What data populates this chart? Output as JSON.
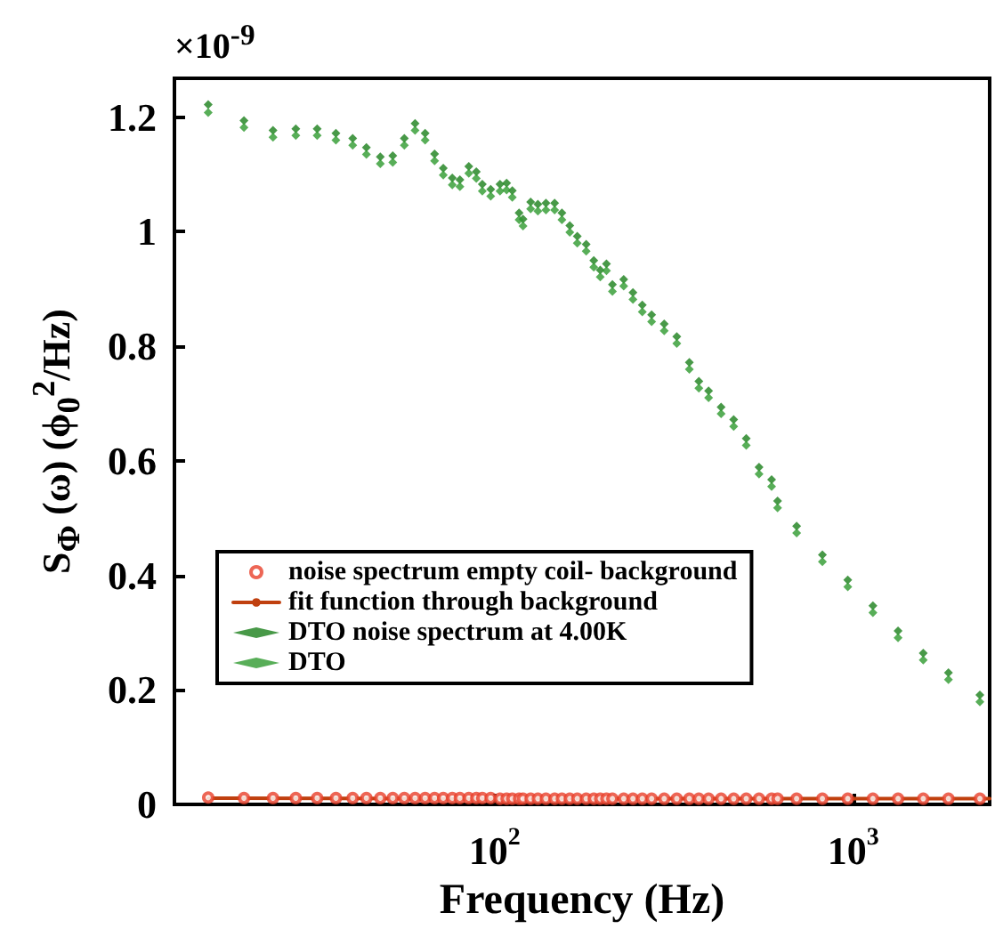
{
  "chart_data": {
    "type": "scatter",
    "xlabel": "Frequency (Hz)",
    "ylabel": "S$_{Φ}$ (ω) (ϕ$_{0}$$^{2}$/Hz)",
    "annotations": [
      "×10$^{-9}$"
    ],
    "log": "x",
    "xlim": [
      12.8,
      2400
    ],
    "xticks": [
      {
        "value": 100,
        "label": "10$^{2}$"
      },
      {
        "value": 1000,
        "label": "10$^{3}$"
      }
    ],
    "ylim": [
      0,
      1.268
    ],
    "yticks": [
      0,
      0.2,
      0.4,
      0.6,
      0.8,
      1,
      1.2
    ],
    "grid": false,
    "legend": "bottom left",
    "series": [
      {
        "name": "noise spectrum empty coil- background",
        "marker": "circle",
        "color": "#e8402a",
        "x": [
          15.9,
          20.0,
          24.1,
          27.9,
          32.0,
          36.1,
          40.2,
          43.9,
          48.0,
          52.0,
          56.0,
          60.0,
          64.0,
          68.0,
          71.9,
          76.2,
          80.0,
          84.7,
          88.9,
          92.4,
          97.5,
          103.5,
          108,
          112,
          117,
          120,
          126,
          132,
          139,
          147,
          154,
          162,
          170,
          180,
          189,
          197,
          205,
          213,
          229,
          243,
          258,
          274,
          297,
          322,
          349,
          371,
          395,
          428,
          464,
          503,
          546,
          592,
          615,
          695,
          820,
          965,
          1134,
          1333,
          1567,
          1842,
          2254
        ],
        "values": [
          0.012,
          0.011,
          0.011,
          0.011,
          0.011,
          0.011,
          0.011,
          0.011,
          0.011,
          0.011,
          0.011,
          0.011,
          0.011,
          0.011,
          0.011,
          0.011,
          0.011,
          0.011,
          0.011,
          0.011,
          0.011,
          0.01,
          0.01,
          0.01,
          0.01,
          0.01,
          0.01,
          0.01,
          0.01,
          0.01,
          0.01,
          0.01,
          0.01,
          0.01,
          0.01,
          0.01,
          0.01,
          0.01,
          0.01,
          0.01,
          0.01,
          0.01,
          0.01,
          0.01,
          0.01,
          0.01,
          0.01,
          0.01,
          0.01,
          0.01,
          0.01,
          0.01,
          0.01,
          0.01,
          0.01,
          0.01,
          0.01,
          0.01,
          0.01,
          0.01,
          0.01
        ]
      },
      {
        "name": "fit function through background",
        "type": "line",
        "marker": "none",
        "color": "#c0400f",
        "x": [
          15.9,
          100,
          2400
        ],
        "values": [
          0.011,
          0.01,
          0.01
        ]
      },
      {
        "name": "DTO noise spectrum at 4.00K",
        "marker": "diamond",
        "color": "#1a7f1a",
        "x": [
          15.9,
          20.0,
          24.1,
          27.9,
          32.0,
          36.1,
          40.2,
          43.9,
          48.0,
          52.0,
          56.0,
          60.0,
          64.0,
          68.0,
          71.9,
          76.2,
          80.0,
          84.7,
          88.9,
          92.4,
          97.5,
          103.5,
          108,
          112,
          117,
          120,
          126,
          132,
          139,
          147,
          154,
          162,
          170,
          180,
          189,
          197,
          205,
          213,
          229,
          243,
          258,
          274,
          297,
          322,
          349,
          371,
          395,
          428,
          464,
          503,
          546,
          592,
          615,
          695,
          820,
          965,
          1134,
          1333,
          1567,
          1842,
          2254
        ],
        "values": [
          1.222,
          1.194,
          1.177,
          1.18,
          1.18,
          1.172,
          1.163,
          1.147,
          1.131,
          1.133,
          1.163,
          1.189,
          1.172,
          1.136,
          1.111,
          1.094,
          1.091,
          1.114,
          1.105,
          1.083,
          1.074,
          1.083,
          1.085,
          1.072,
          1.033,
          1.022,
          1.052,
          1.048,
          1.05,
          1.05,
          1.033,
          1.011,
          0.992,
          0.978,
          0.95,
          0.933,
          0.944,
          0.908,
          0.917,
          0.894,
          0.872,
          0.855,
          0.839,
          0.817,
          0.772,
          0.739,
          0.722,
          0.694,
          0.672,
          0.639,
          0.589,
          0.567,
          0.53,
          0.486,
          0.436,
          0.392,
          0.347,
          0.303,
          0.264,
          0.23,
          0.191
        ]
      },
      {
        "name": "DTO",
        "marker": "diamond",
        "color": "#2e9a2e",
        "x": [
          15.9,
          20.0,
          24.1,
          27.9,
          32.0,
          36.1,
          40.2,
          43.9,
          48.0,
          52.0,
          56.0,
          60.0,
          64.0,
          68.0,
          71.9,
          76.2,
          80.0,
          84.7,
          88.9,
          92.4,
          97.5,
          103.5,
          108,
          112,
          117,
          120,
          126,
          132,
          139,
          147,
          154,
          162,
          170,
          180,
          189,
          197,
          205,
          213,
          229,
          243,
          258,
          274,
          297,
          322,
          349,
          371,
          395,
          428,
          464,
          503,
          546,
          592,
          615,
          695,
          820,
          965,
          1134,
          1333,
          1567,
          1842,
          2254
        ],
        "values": [
          1.208,
          1.182,
          1.165,
          1.168,
          1.168,
          1.16,
          1.151,
          1.135,
          1.119,
          1.121,
          1.151,
          1.177,
          1.16,
          1.124,
          1.099,
          1.082,
          1.079,
          1.102,
          1.093,
          1.071,
          1.062,
          1.071,
          1.073,
          1.06,
          1.021,
          1.01,
          1.04,
          1.036,
          1.038,
          1.038,
          1.021,
          0.999,
          0.98,
          0.966,
          0.938,
          0.921,
          0.932,
          0.896,
          0.905,
          0.882,
          0.86,
          0.843,
          0.827,
          0.805,
          0.76,
          0.727,
          0.71,
          0.682,
          0.66,
          0.627,
          0.577,
          0.555,
          0.518,
          0.474,
          0.424,
          0.38,
          0.335,
          0.291,
          0.252,
          0.218,
          0.179
        ]
      }
    ]
  }
}
